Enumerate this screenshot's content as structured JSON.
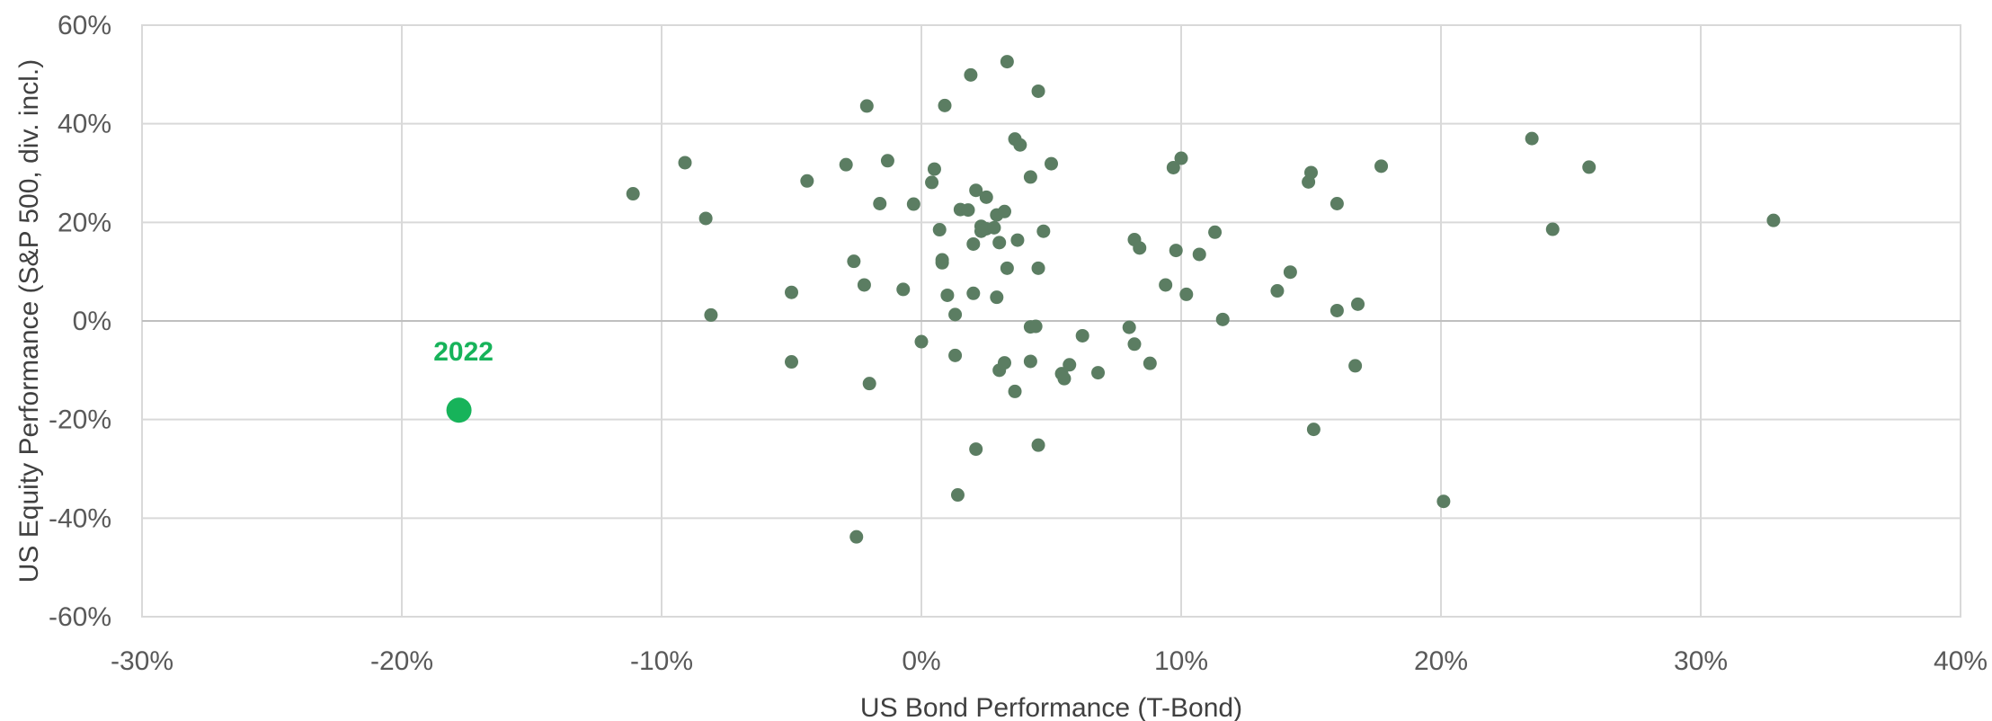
{
  "chart_data": {
    "type": "scatter",
    "xlabel": "US Bond Performance (T-Bond)",
    "ylabel": "US Equity Performance (S&P 500, div. incl.)",
    "xlim": [
      -30,
      40
    ],
    "ylim": [
      -60,
      60
    ],
    "x_ticks": [
      -30,
      -20,
      -10,
      0,
      10,
      20,
      30,
      40
    ],
    "y_ticks": [
      -60,
      -40,
      -20,
      0,
      20,
      40,
      60
    ],
    "x_tick_labels": [
      "-30%",
      "-20%",
      "-10%",
      "0%",
      "10%",
      "20%",
      "30%",
      "40%"
    ],
    "y_tick_labels": [
      "-60%",
      "-40%",
      "-20%",
      "0%",
      "20%",
      "40%",
      "60%"
    ],
    "grid": true,
    "colors": {
      "points": "#5b7d62",
      "highlight": "#17b35a"
    },
    "highlight": {
      "label": "2022",
      "x": -17.8,
      "y": -18.1
    },
    "points": [
      {
        "x": -11.1,
        "y": 25.8
      },
      {
        "x": -9.1,
        "y": 32.1
      },
      {
        "x": -8.3,
        "y": 20.8
      },
      {
        "x": -8.1,
        "y": 1.2
      },
      {
        "x": -5.0,
        "y": 5.8
      },
      {
        "x": -5.0,
        "y": -8.3
      },
      {
        "x": -4.4,
        "y": 28.4
      },
      {
        "x": -2.9,
        "y": 31.7
      },
      {
        "x": -2.6,
        "y": 12.1
      },
      {
        "x": -2.5,
        "y": -43.8
      },
      {
        "x": -2.2,
        "y": 7.3
      },
      {
        "x": -2.1,
        "y": 43.6
      },
      {
        "x": -2.0,
        "y": -12.7
      },
      {
        "x": -1.6,
        "y": 23.8
      },
      {
        "x": -1.3,
        "y": 32.5
      },
      {
        "x": -0.7,
        "y": 6.4
      },
      {
        "x": -0.3,
        "y": 23.7
      },
      {
        "x": 0.0,
        "y": -4.2
      },
      {
        "x": 0.4,
        "y": 28.1
      },
      {
        "x": 0.5,
        "y": 30.8
      },
      {
        "x": 0.7,
        "y": 18.5
      },
      {
        "x": 0.8,
        "y": 11.8
      },
      {
        "x": 0.8,
        "y": 12.4
      },
      {
        "x": 0.9,
        "y": 43.7
      },
      {
        "x": 1.0,
        "y": 5.2
      },
      {
        "x": 1.3,
        "y": 1.3
      },
      {
        "x": 1.3,
        "y": -7.0
      },
      {
        "x": 1.4,
        "y": -35.3
      },
      {
        "x": 1.5,
        "y": 22.6
      },
      {
        "x": 1.8,
        "y": 22.5
      },
      {
        "x": 1.9,
        "y": 49.9
      },
      {
        "x": 2.0,
        "y": 15.6
      },
      {
        "x": 2.0,
        "y": 5.6
      },
      {
        "x": 2.1,
        "y": 26.5
      },
      {
        "x": 2.1,
        "y": -26.0
      },
      {
        "x": 2.3,
        "y": 18.2
      },
      {
        "x": 2.3,
        "y": 19.2
      },
      {
        "x": 2.5,
        "y": 18.7
      },
      {
        "x": 2.5,
        "y": 25.1
      },
      {
        "x": 2.8,
        "y": 18.9
      },
      {
        "x": 2.9,
        "y": 21.5
      },
      {
        "x": 2.9,
        "y": 4.8
      },
      {
        "x": 3.0,
        "y": -10.0
      },
      {
        "x": 3.0,
        "y": 15.9
      },
      {
        "x": 3.2,
        "y": 22.2
      },
      {
        "x": 3.2,
        "y": -8.5
      },
      {
        "x": 3.3,
        "y": 10.7
      },
      {
        "x": 3.3,
        "y": 52.6
      },
      {
        "x": 3.6,
        "y": 36.9
      },
      {
        "x": 3.6,
        "y": -14.3
      },
      {
        "x": 3.7,
        "y": 16.4
      },
      {
        "x": 3.8,
        "y": 35.7
      },
      {
        "x": 4.2,
        "y": 29.2
      },
      {
        "x": 4.2,
        "y": -1.2
      },
      {
        "x": 4.2,
        "y": -8.2
      },
      {
        "x": 4.4,
        "y": -1.1
      },
      {
        "x": 4.5,
        "y": 46.6
      },
      {
        "x": 4.5,
        "y": 10.7
      },
      {
        "x": 4.5,
        "y": -25.2
      },
      {
        "x": 4.7,
        "y": 18.2
      },
      {
        "x": 5.0,
        "y": 31.9
      },
      {
        "x": 5.4,
        "y": -10.7
      },
      {
        "x": 5.5,
        "y": -11.7
      },
      {
        "x": 5.7,
        "y": -8.9
      },
      {
        "x": 6.2,
        "y": -3.0
      },
      {
        "x": 6.8,
        "y": -10.5
      },
      {
        "x": 8.0,
        "y": -1.3
      },
      {
        "x": 8.2,
        "y": 16.5
      },
      {
        "x": 8.2,
        "y": -4.7
      },
      {
        "x": 8.4,
        "y": 14.8
      },
      {
        "x": 8.8,
        "y": -8.6
      },
      {
        "x": 9.4,
        "y": 7.3
      },
      {
        "x": 9.7,
        "y": 31.1
      },
      {
        "x": 9.8,
        "y": 14.3
      },
      {
        "x": 10.0,
        "y": 33.0
      },
      {
        "x": 10.2,
        "y": 5.4
      },
      {
        "x": 10.7,
        "y": 13.5
      },
      {
        "x": 11.3,
        "y": 18.0
      },
      {
        "x": 11.6,
        "y": 0.3
      },
      {
        "x": 13.7,
        "y": 6.1
      },
      {
        "x": 14.2,
        "y": 9.9
      },
      {
        "x": 14.9,
        "y": 28.2
      },
      {
        "x": 15.0,
        "y": 30.1
      },
      {
        "x": 15.1,
        "y": -22.0
      },
      {
        "x": 16.0,
        "y": 23.8
      },
      {
        "x": 16.0,
        "y": 2.1
      },
      {
        "x": 16.7,
        "y": -9.1
      },
      {
        "x": 16.8,
        "y": 3.4
      },
      {
        "x": 17.7,
        "y": 31.4
      },
      {
        "x": 20.1,
        "y": -36.6
      },
      {
        "x": 23.5,
        "y": 37.0
      },
      {
        "x": 24.3,
        "y": 18.6
      },
      {
        "x": 25.7,
        "y": 31.2
      },
      {
        "x": 32.8,
        "y": 20.4
      }
    ]
  }
}
